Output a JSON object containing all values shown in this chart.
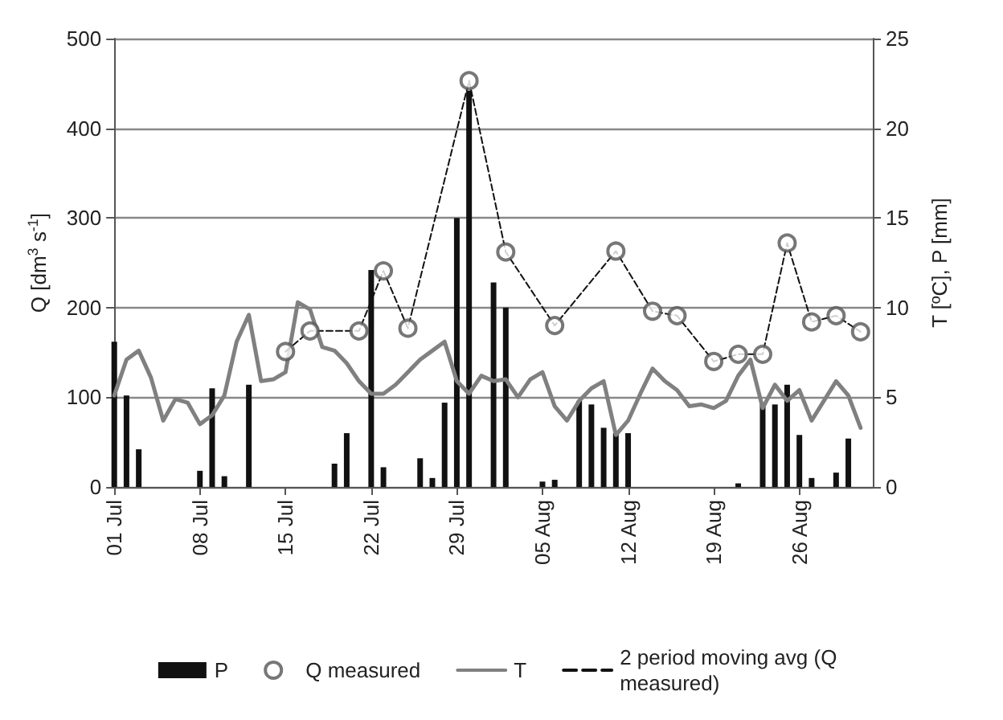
{
  "chart_data": {
    "type": "bar",
    "ylabel": "Q [dm$^{3}$ s$^{-1}$]",
    "y2label": "T [ºC], P [mm]",
    "xlim": [
      "--07-01",
      "--09-01"
    ],
    "xticks": [
      {
        "value": "--07-01",
        "label": "01 Jul"
      },
      {
        "value": "--07-08",
        "label": "08 Jul"
      },
      {
        "value": "--07-15",
        "label": "15 Jul"
      },
      {
        "value": "--07-22",
        "label": "22 Jul"
      },
      {
        "value": "--07-29",
        "label": "29 Jul"
      },
      {
        "value": "--08-05",
        "label": "05 Aug"
      },
      {
        "value": "--08-12",
        "label": "12 Aug"
      },
      {
        "value": "--08-19",
        "label": "19 Aug"
      },
      {
        "value": "--08-26",
        "label": "26 Aug"
      }
    ],
    "ylim": [
      0,
      500
    ],
    "yticks": [
      0,
      100,
      200,
      300,
      400,
      500
    ],
    "y2lim": [
      0,
      25
    ],
    "y2ticks": [
      0,
      5,
      10,
      15,
      20,
      25
    ],
    "grid": "y",
    "legend": "bottom",
    "series": [
      {
        "name": "P",
        "axis": "y2",
        "color": "#111111",
        "x": [
          "--07-01",
          "--07-02",
          "--07-03",
          "--07-08",
          "--07-09",
          "--07-10",
          "--07-12",
          "--07-19",
          "--07-20",
          "--07-22",
          "--07-23",
          "--07-26",
          "--07-27",
          "--07-28",
          "--07-29",
          "--07-30",
          "--08-01",
          "--08-02",
          "--08-05",
          "--08-06",
          "--08-08",
          "--08-09",
          "--08-10",
          "--08-11",
          "--08-12",
          "--08-21",
          "--08-23",
          "--08-24",
          "--08-25",
          "--08-26",
          "--08-27",
          "--08-29",
          "--08-30"
        ],
        "values": [
          8.1,
          5.1,
          2.1,
          0.9,
          5.5,
          0.6,
          5.7,
          1.3,
          3.0,
          12.1,
          1.1,
          1.6,
          0.5,
          4.7,
          15.0,
          22.1,
          11.4,
          10.0,
          0.3,
          0.4,
          4.8,
          4.6,
          3.3,
          3.0,
          3.0,
          0.2,
          4.6,
          4.6,
          5.7,
          2.9,
          0.5,
          0.8,
          2.7
        ]
      },
      {
        "name": "Q measured",
        "type": "scatter",
        "marker": "circle",
        "color": "#555555",
        "x": [
          "--07-15",
          "--07-17",
          "--07-21",
          "--07-23",
          "--07-25",
          "--07-30",
          "--08-02",
          "--08-06",
          "--08-11",
          "--08-14",
          "--08-16",
          "--08-19",
          "--08-21",
          "--08-23",
          "--08-25",
          "--08-27",
          "--08-29",
          "--08-31"
        ],
        "values": [
          151,
          174,
          174,
          241,
          177,
          453,
          262,
          180,
          263,
          196,
          191,
          140,
          148,
          148,
          272,
          184,
          191,
          173
        ]
      },
      {
        "name": "T",
        "type": "line",
        "axis": "y2",
        "color": "#808080",
        "x": [
          "--07-01",
          "--07-02",
          "--07-03",
          "--07-04",
          "--07-05",
          "--07-06",
          "--07-07",
          "--07-08",
          "--07-09",
          "--07-10",
          "--07-11",
          "--07-12",
          "--07-13",
          "--07-14",
          "--07-15",
          "--07-16",
          "--07-17",
          "--07-18",
          "--07-19",
          "--07-20",
          "--07-21",
          "--07-22",
          "--07-23",
          "--07-24",
          "--07-25",
          "--07-26",
          "--07-27",
          "--07-28",
          "--07-29",
          "--07-30",
          "--07-31",
          "--08-01",
          "--08-02",
          "--08-03",
          "--08-04",
          "--08-05",
          "--08-06",
          "--08-07",
          "--08-08",
          "--08-09",
          "--08-10",
          "--08-11",
          "--08-12",
          "--08-13",
          "--08-14",
          "--08-15",
          "--08-16",
          "--08-17",
          "--08-18",
          "--08-19",
          "--08-20",
          "--08-21",
          "--08-22",
          "--08-23",
          "--08-24",
          "--08-25",
          "--08-26",
          "--08-27",
          "--08-28",
          "--08-29",
          "--08-30",
          "--08-31"
        ],
        "values": [
          5.1,
          7.1,
          7.6,
          6.1,
          3.7,
          4.9,
          4.7,
          3.5,
          4.0,
          5.1,
          8.1,
          9.6,
          5.9,
          6.0,
          6.4,
          10.3,
          9.9,
          7.8,
          7.6,
          6.9,
          5.9,
          5.2,
          5.2,
          5.7,
          6.4,
          7.1,
          7.6,
          8.1,
          5.9,
          5.2,
          6.2,
          5.9,
          6.0,
          5.0,
          6.0,
          6.4,
          4.5,
          3.7,
          4.8,
          5.5,
          5.9,
          2.9,
          3.7,
          5.2,
          6.6,
          5.9,
          5.4,
          4.5,
          4.6,
          4.4,
          4.8,
          6.2,
          7.1,
          4.4,
          5.7,
          4.8,
          5.4,
          3.7,
          4.8,
          5.9,
          5.1,
          3.3
        ]
      },
      {
        "name": "2 period moving avg (Q measured)",
        "type": "line",
        "line_style": "dashed",
        "marker": "none",
        "color": "#111111",
        "x": [
          "--07-15",
          "--07-17",
          "--07-21",
          "--07-23",
          "--07-25",
          "--07-30",
          "--08-02",
          "--08-06",
          "--08-11",
          "--08-14",
          "--08-16",
          "--08-19",
          "--08-21",
          "--08-23",
          "--08-25",
          "--08-27",
          "--08-29",
          "--08-31"
        ],
        "values": [
          151,
          174,
          174,
          241,
          177,
          453,
          262,
          180,
          263,
          196,
          191,
          140,
          148,
          148,
          272,
          184,
          191,
          173
        ]
      }
    ]
  }
}
